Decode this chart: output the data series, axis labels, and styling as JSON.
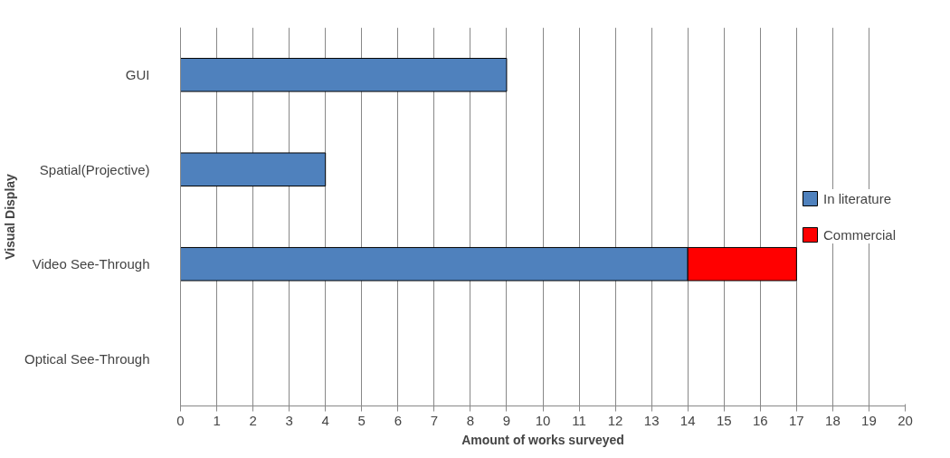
{
  "chart_data": {
    "type": "bar",
    "orientation": "horizontal",
    "stacked": true,
    "xlabel": "Amount of works surveyed",
    "ylabel": "Visual Display",
    "categories": [
      "GUI",
      "Spatial(Projective)",
      "Video See-Through",
      "Optical See-Through"
    ],
    "series": [
      {
        "name": "In literature",
        "color": "#4f81bd",
        "values": [
          9,
          4,
          14,
          0
        ]
      },
      {
        "name": "Commercial",
        "color": "#ff0000",
        "values": [
          0,
          0,
          3,
          0
        ]
      }
    ],
    "xlim": [
      0,
      20
    ],
    "xticks": [
      0,
      1,
      2,
      3,
      4,
      5,
      6,
      7,
      8,
      9,
      10,
      11,
      12,
      13,
      14,
      15,
      16,
      17,
      18,
      19,
      20
    ],
    "grid": "x",
    "legend": "right"
  }
}
